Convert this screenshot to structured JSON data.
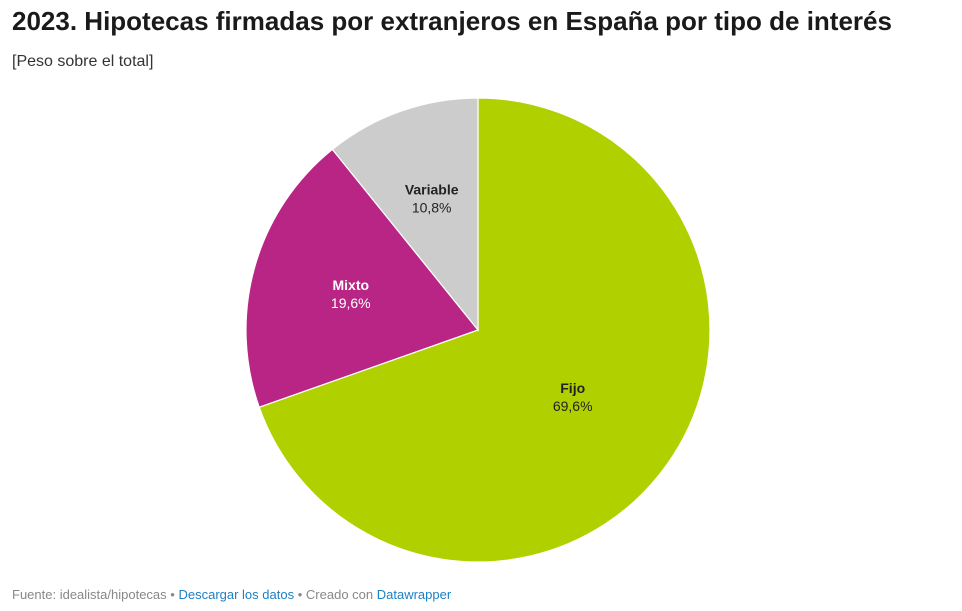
{
  "chart_data": {
    "type": "pie",
    "title": "2023. Hipotecas firmadas por extranjeros en España por tipo de interés",
    "subtitle": "[Peso sobre el total]",
    "slices": [
      {
        "label": "Fijo",
        "value": 69.6,
        "value_label": "69,6%",
        "color": "#b1d000",
        "label_color": "#222222"
      },
      {
        "label": "Mixto",
        "value": 19.6,
        "value_label": "19,6%",
        "color": "#b82585",
        "label_color": "#ffffff"
      },
      {
        "label": "Variable",
        "value": 10.8,
        "value_label": "10,8%",
        "color": "#cccccc",
        "label_color": "#222222"
      }
    ],
    "start_slice": "Fijo",
    "direction": "clockwise"
  },
  "footer": {
    "source": "Fuente: idealista/hipotecas",
    "separator": "•",
    "download_label": "Descargar los datos",
    "created_with": "Creado con",
    "tool_name": "Datawrapper"
  }
}
